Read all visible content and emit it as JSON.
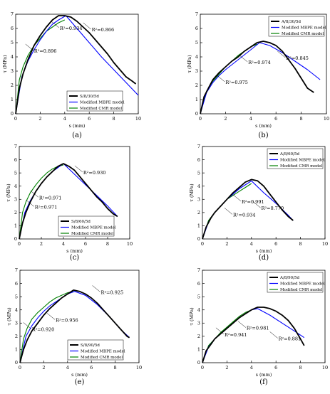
{
  "chart_data": [
    {
      "type": "line",
      "panel_label": "(a)",
      "xlabel": "s (mm)",
      "ylabel": "τ (MPa)",
      "xlim": [
        0,
        10
      ],
      "ylim": [
        0,
        7
      ],
      "xticks": [
        "0",
        "2",
        "4",
        "6",
        "8",
        "10"
      ],
      "yticks": [
        "0",
        "1",
        "2",
        "3",
        "4",
        "5",
        "6",
        "7"
      ],
      "legend_position": "bottom-right",
      "series": [
        {
          "name": "S/8/30/5d",
          "color": "#000000",
          "x": [
            0,
            0.3,
            0.6,
            1.0,
            1.5,
            2.0,
            2.5,
            3.0,
            3.5,
            4.0,
            4.5,
            5.0,
            5.5,
            6.0,
            6.5,
            7.0,
            7.5,
            8.0,
            8.5,
            9.0,
            9.5,
            9.8
          ],
          "y": [
            0,
            1.8,
            2.8,
            3.8,
            4.8,
            5.5,
            6.1,
            6.6,
            6.9,
            6.9,
            6.8,
            6.5,
            6.1,
            5.7,
            5.2,
            4.7,
            4.2,
            3.6,
            3.1,
            2.6,
            2.3,
            2.1
          ]
        },
        {
          "name": "Modified MBPE model",
          "color": "#0000ff",
          "x": [
            0,
            0.5,
            1.0,
            1.5,
            2.0,
            2.5,
            3.0,
            3.5,
            4.1,
            5.0,
            6.0,
            7.0,
            8.0,
            9.0,
            10.0
          ],
          "y": [
            0,
            2.6,
            3.7,
            4.5,
            5.2,
            5.8,
            6.3,
            6.6,
            6.9,
            6.0,
            5.0,
            4.0,
            3.1,
            2.2,
            1.3
          ]
        },
        {
          "name": "Modified CMR model",
          "color": "#008000",
          "x": [
            0,
            0.3,
            0.6,
            1.0,
            1.5,
            2.0,
            2.5,
            3.0,
            3.5,
            4.0
          ],
          "y": [
            0,
            2.4,
            3.3,
            4.1,
            4.8,
            5.3,
            5.8,
            6.1,
            6.4,
            6.6
          ]
        }
      ],
      "annotations": [
        {
          "text": "R²=0.896",
          "x": 1.5,
          "y": 4.3
        },
        {
          "text": "R²=0.934",
          "x": 3.6,
          "y": 5.9
        },
        {
          "text": "R²=0.866",
          "x": 6.2,
          "y": 5.8
        }
      ]
    },
    {
      "type": "line",
      "panel_label": "(b)",
      "xlabel": "s (mm)",
      "ylabel": "τ (MPa)",
      "xlim": [
        0,
        10
      ],
      "ylim": [
        0,
        7
      ],
      "xticks": [
        "0",
        "2",
        "4",
        "6",
        "8",
        "10"
      ],
      "yticks": [
        "0",
        "1",
        "2",
        "3",
        "4",
        "5",
        "6",
        "7"
      ],
      "legend_position": "top-right",
      "series": [
        {
          "name": "A/8/30/5d",
          "color": "#000000",
          "x": [
            0,
            0.3,
            0.7,
            1.0,
            1.5,
            2.0,
            2.5,
            3.0,
            3.5,
            4.0,
            4.5,
            5.0,
            5.5,
            6.0,
            6.5,
            7.0,
            7.5,
            8.0,
            8.5,
            9.0
          ],
          "y": [
            0,
            1.2,
            1.9,
            2.4,
            2.9,
            3.3,
            3.7,
            4.0,
            4.4,
            4.7,
            5.0,
            5.1,
            5.0,
            4.8,
            4.4,
            3.8,
            3.2,
            2.5,
            1.8,
            1.5
          ]
        },
        {
          "name": "Modified MBPE model",
          "color": "#0000ff",
          "x": [
            0,
            0.5,
            1.0,
            1.5,
            2.0,
            3.0,
            4.0,
            4.7,
            5.5,
            6.5,
            7.5,
            8.5,
            9.5
          ],
          "y": [
            0,
            1.5,
            2.2,
            2.7,
            3.1,
            3.8,
            4.5,
            5.0,
            4.8,
            4.3,
            3.7,
            3.1,
            2.4
          ]
        },
        {
          "name": "Modified CMR model",
          "color": "#008000",
          "x": [
            0,
            0.5,
            1.0,
            1.5,
            2.0,
            2.5,
            3.0,
            3.5,
            4.0,
            4.5
          ],
          "y": [
            0,
            1.6,
            2.3,
            2.8,
            3.3,
            3.7,
            4.1,
            4.4,
            4.7,
            4.9
          ]
        }
      ],
      "annotations": [
        {
          "text": "R²=0.975",
          "x": 2.0,
          "y": 2.1
        },
        {
          "text": "R²=0.974",
          "x": 3.8,
          "y": 3.5
        },
        {
          "text": "R²=0.845",
          "x": 6.8,
          "y": 3.8
        }
      ]
    },
    {
      "type": "line",
      "panel_label": "(c)",
      "xlabel": "s (mm)",
      "ylabel": "τ (MPa)",
      "xlim": [
        0,
        10
      ],
      "ylim": [
        0,
        7
      ],
      "xticks": [
        "0",
        "2",
        "4",
        "6",
        "8",
        "10"
      ],
      "yticks": [
        "0",
        "1",
        "2",
        "3",
        "4",
        "5",
        "6",
        "7"
      ],
      "legend_position": "bottom-right",
      "series": [
        {
          "name": "S/8/60/5d",
          "color": "#000000",
          "x": [
            0,
            0.3,
            0.6,
            1.0,
            1.5,
            2.0,
            2.5,
            3.0,
            3.5,
            4.0,
            4.5,
            5.0,
            5.5,
            6.0,
            6.5,
            7.0,
            7.5,
            8.0,
            8.5,
            8.9
          ],
          "y": [
            0,
            1.2,
            2.0,
            2.8,
            3.6,
            4.2,
            4.7,
            5.1,
            5.5,
            5.7,
            5.5,
            5.2,
            4.7,
            4.2,
            3.7,
            3.2,
            2.8,
            2.3,
            1.9,
            1.7
          ]
        },
        {
          "name": "Modified MBPE model",
          "color": "#0000ff",
          "x": [
            0,
            0.5,
            1.0,
            1.5,
            2.0,
            2.5,
            3.0,
            3.5,
            4.0,
            5.0,
            6.0,
            7.0,
            8.0,
            8.9
          ],
          "y": [
            0,
            2.0,
            2.9,
            3.6,
            4.2,
            4.7,
            5.1,
            5.4,
            5.7,
            4.9,
            4.1,
            3.3,
            2.5,
            1.7
          ]
        },
        {
          "name": "Modified CMR model",
          "color": "#008000",
          "x": [
            0,
            0.3,
            0.6,
            1.0,
            1.5,
            2.0,
            2.5,
            3.0,
            3.5,
            4.0
          ],
          "y": [
            0,
            2.0,
            2.8,
            3.5,
            4.1,
            4.6,
            5.0,
            5.3,
            5.5,
            5.6
          ]
        }
      ],
      "annotations": [
        {
          "text": "R²=0.971",
          "x": 1.8,
          "y": 3.0
        },
        {
          "text": "R²=0.971",
          "x": 1.4,
          "y": 2.3
        },
        {
          "text": "R²=0.930",
          "x": 5.8,
          "y": 4.9
        }
      ]
    },
    {
      "type": "line",
      "panel_label": "(d)",
      "xlabel": "s (mm)",
      "ylabel": "τ (MPa)",
      "xlim": [
        0,
        10
      ],
      "ylim": [
        0,
        7
      ],
      "xticks": [
        "0",
        "2",
        "4",
        "6",
        "8",
        "10"
      ],
      "yticks": [
        "0",
        "1",
        "2",
        "3",
        "4",
        "5",
        "6",
        "7"
      ],
      "legend_position": "top-right",
      "series": [
        {
          "name": "A/8/60/5d",
          "color": "#000000",
          "x": [
            0,
            0.3,
            0.7,
            1.0,
            1.5,
            2.0,
            2.5,
            3.0,
            3.5,
            4.0,
            4.5,
            5.0,
            5.5,
            6.0,
            6.5,
            7.0,
            7.4
          ],
          "y": [
            0,
            0.9,
            1.6,
            2.0,
            2.5,
            3.0,
            3.5,
            3.9,
            4.3,
            4.5,
            4.4,
            4.0,
            3.4,
            2.8,
            2.2,
            1.7,
            1.4
          ]
        },
        {
          "name": "Modified MBPE model",
          "color": "#0000ff",
          "x": [
            0,
            0.5,
            1.0,
            1.5,
            2.0,
            2.5,
            3.0,
            3.5,
            4.0,
            5.0,
            6.0,
            7.0,
            7.4
          ],
          "y": [
            0,
            1.3,
            2.0,
            2.5,
            3.0,
            3.4,
            3.8,
            4.1,
            4.4,
            3.5,
            2.7,
            1.8,
            1.4
          ]
        },
        {
          "name": "Modified CMR model",
          "color": "#008000",
          "x": [
            0,
            0.5,
            1.0,
            1.5,
            2.0,
            2.5,
            3.0,
            3.5,
            4.0
          ],
          "y": [
            0,
            1.4,
            2.0,
            2.5,
            3.0,
            3.3,
            3.6,
            3.9,
            4.2
          ]
        }
      ],
      "annotations": [
        {
          "text": "R²=0.991",
          "x": 3.2,
          "y": 2.7
        },
        {
          "text": "R²=0.934",
          "x": 2.5,
          "y": 1.7
        },
        {
          "text": "R²=0.770",
          "x": 4.8,
          "y": 2.2
        }
      ]
    },
    {
      "type": "line",
      "panel_label": "(e)",
      "xlabel": "s (mm)",
      "ylabel": "τ (MPa)",
      "xlim": [
        0,
        10
      ],
      "ylim": [
        0,
        7
      ],
      "xticks": [
        "0",
        "2",
        "4",
        "6",
        "8",
        "10"
      ],
      "yticks": [
        "0",
        "1",
        "2",
        "3",
        "4",
        "5",
        "6",
        "7"
      ],
      "legend_position": "bottom-right",
      "series": [
        {
          "name": "S/8/90/5d",
          "color": "#000000",
          "x": [
            0,
            0.3,
            0.6,
            1.0,
            1.5,
            2.0,
            2.5,
            3.0,
            3.5,
            4.0,
            4.5,
            5.0,
            5.5,
            6.0,
            6.5,
            7.0,
            7.5,
            8.0,
            8.5,
            9.0,
            9.2
          ],
          "y": [
            0,
            1.0,
            1.7,
            2.4,
            3.0,
            3.6,
            4.1,
            4.5,
            4.9,
            5.2,
            5.5,
            5.4,
            5.2,
            4.9,
            4.5,
            4.0,
            3.5,
            3.0,
            2.5,
            2.0,
            1.9
          ]
        },
        {
          "name": "Modified MBPE model",
          "color": "#0000ff",
          "x": [
            0,
            0.5,
            1.0,
            1.5,
            2.0,
            2.5,
            3.0,
            3.5,
            4.0,
            4.6,
            5.5,
            6.5,
            7.5,
            8.5,
            9.2
          ],
          "y": [
            0,
            2.0,
            2.8,
            3.4,
            3.9,
            4.3,
            4.6,
            4.9,
            5.2,
            5.4,
            5.1,
            4.4,
            3.5,
            2.5,
            1.9
          ]
        },
        {
          "name": "Modified CMR model",
          "color": "#008000",
          "x": [
            0,
            0.3,
            0.6,
            1.0,
            1.5,
            2.0,
            2.5,
            3.0,
            3.5,
            4.0,
            4.5
          ],
          "y": [
            0,
            1.8,
            2.6,
            3.3,
            3.8,
            4.2,
            4.6,
            4.9,
            5.1,
            5.3,
            5.4
          ]
        }
      ],
      "annotations": [
        {
          "text": "R²=0.920",
          "x": 1.0,
          "y": 2.4
        },
        {
          "text": "R²=0.956",
          "x": 3.0,
          "y": 3.1
        },
        {
          "text": "R²=0.925",
          "x": 6.8,
          "y": 5.2
        }
      ]
    },
    {
      "type": "line",
      "panel_label": "(f)",
      "xlabel": "s (mm)",
      "ylabel": "τ (MPa)",
      "xlim": [
        0,
        10
      ],
      "ylim": [
        0,
        7
      ],
      "xticks": [
        "0",
        "2",
        "4",
        "6",
        "8",
        "10"
      ],
      "yticks": [
        "0",
        "1",
        "2",
        "3",
        "4",
        "5",
        "6",
        "7"
      ],
      "legend_position": "top-right",
      "series": [
        {
          "name": "A/8/90/5d",
          "color": "#000000",
          "x": [
            0,
            0.3,
            0.7,
            1.0,
            1.5,
            2.0,
            2.5,
            3.0,
            3.5,
            4.0,
            4.5,
            5.0,
            5.5,
            6.0,
            6.5,
            7.0,
            7.5,
            8.0,
            8.3
          ],
          "y": [
            0,
            0.9,
            1.4,
            1.8,
            2.2,
            2.6,
            3.0,
            3.4,
            3.7,
            4.0,
            4.2,
            4.2,
            4.1,
            3.9,
            3.6,
            3.2,
            2.6,
            1.8,
            1.3
          ]
        },
        {
          "name": "Modified MBPE model",
          "color": "#0000ff",
          "x": [
            0,
            0.5,
            1.0,
            1.5,
            2.0,
            2.5,
            3.0,
            3.5,
            4.0,
            4.5,
            5.5,
            6.5,
            7.5,
            8.3
          ],
          "y": [
            0,
            1.2,
            1.8,
            2.2,
            2.6,
            3.0,
            3.4,
            3.7,
            4.0,
            4.1,
            3.6,
            3.0,
            2.4,
            1.9
          ]
        },
        {
          "name": "Modified CMR model",
          "color": "#008000",
          "x": [
            0,
            0.5,
            1.0,
            1.5,
            2.0,
            2.5,
            3.0,
            3.5,
            4.0
          ],
          "y": [
            0,
            1.3,
            1.8,
            2.3,
            2.7,
            3.1,
            3.5,
            3.8,
            4.0
          ]
        }
      ],
      "annotations": [
        {
          "text": "R²=0.941",
          "x": 1.8,
          "y": 2.0
        },
        {
          "text": "R²=0.981",
          "x": 3.6,
          "y": 2.5
        },
        {
          "text": "R²=0.881",
          "x": 6.2,
          "y": 1.7
        }
      ]
    }
  ]
}
